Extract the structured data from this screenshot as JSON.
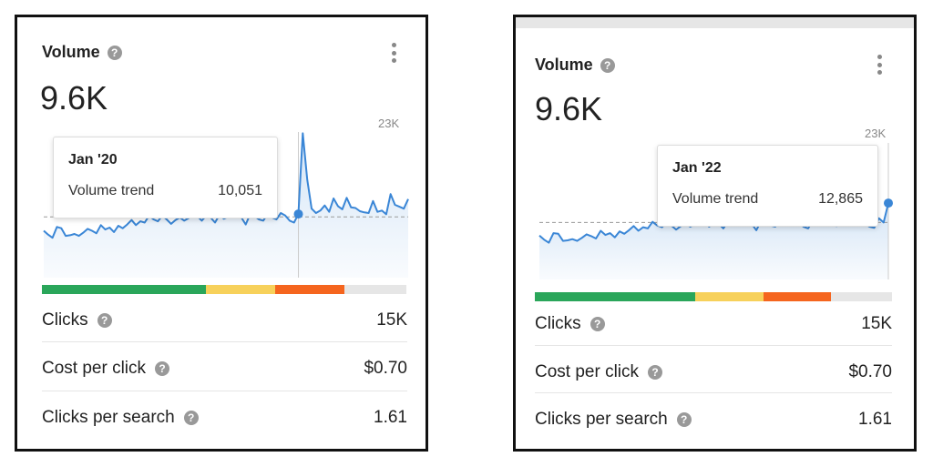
{
  "cards": [
    {
      "title": "Volume",
      "help_icon": "?",
      "volume": "9.6K",
      "max_label": "23K",
      "tooltip": {
        "date": "Jan '20",
        "label": "Volume trend",
        "value": "10,051"
      },
      "metrics": [
        {
          "label": "Clicks",
          "value": "15K"
        },
        {
          "label": "Cost per click",
          "value": "$0.70"
        },
        {
          "label": "Clicks per search",
          "value": "1.61"
        }
      ]
    },
    {
      "title": "Volume",
      "help_icon": "?",
      "volume": "9.6K",
      "max_label": "23K",
      "tooltip": {
        "date": "Jan '22",
        "label": "Volume trend",
        "value": "12,865"
      },
      "metrics": [
        {
          "label": "Clicks",
          "value": "15K"
        },
        {
          "label": "Cost per click",
          "value": "$0.70"
        },
        {
          "label": "Clicks per search",
          "value": "1.61"
        }
      ]
    }
  ],
  "difficulty_bar": {
    "segments": [
      {
        "color": "#2aa65a",
        "fraction": 0.45
      },
      {
        "color": "#f7d15b",
        "fraction": 0.19
      },
      {
        "color": "#f5651e",
        "fraction": 0.19
      },
      {
        "color": "#e6e6e6",
        "fraction": 0.17
      }
    ]
  },
  "chart_data": [
    {
      "type": "area",
      "ylim": [
        0,
        23000
      ],
      "average": 9600,
      "highlight_index": 58,
      "values": [
        7400,
        6800,
        6300,
        8000,
        7800,
        6600,
        6700,
        6900,
        6600,
        7100,
        7700,
        7400,
        7000,
        8300,
        7600,
        7900,
        7200,
        8200,
        7800,
        8400,
        9100,
        8300,
        8900,
        8700,
        9800,
        9200,
        8900,
        9800,
        9200,
        8500,
        9100,
        9500,
        9000,
        9400,
        9900,
        9700,
        9000,
        9800,
        9500,
        8700,
        9900,
        9300,
        9600,
        10300,
        9600,
        9500,
        8400,
        10000,
        9700,
        9200,
        9000,
        10100,
        9500,
        9200,
        10200,
        9800,
        9000,
        8700,
        10051,
        22800,
        15500,
        10900,
        10200,
        10600,
        11400,
        10400,
        12500,
        11300,
        10800,
        12600,
        11100,
        11000,
        10500,
        10300,
        10200,
        12100,
        10400,
        10600,
        10000,
        13200,
        11500,
        11200,
        10900,
        12400
      ]
    },
    {
      "type": "area",
      "ylim": [
        0,
        23000
      ],
      "average": 9600,
      "highlight_index": 74,
      "values": [
        7400,
        6700,
        6200,
        7800,
        7700,
        6500,
        6600,
        6800,
        6500,
        7000,
        7600,
        7300,
        6900,
        8200,
        7500,
        7800,
        7100,
        8100,
        7700,
        8300,
        9000,
        8200,
        8800,
        8600,
        9700,
        9100,
        8800,
        9700,
        9100,
        8400,
        9000,
        9400,
        8900,
        9300,
        9800,
        9600,
        8900,
        9700,
        9400,
        8600,
        9800,
        9200,
        9500,
        10200,
        9500,
        9400,
        8300,
        9900,
        9600,
        9100,
        8900,
        10000,
        9400,
        9100,
        10100,
        9700,
        8900,
        8600,
        10000,
        9600,
        9400,
        9800,
        9300,
        9000,
        10400,
        9500,
        9800,
        10100,
        9700,
        9400,
        8900,
        8700,
        10300,
        9600,
        12865
      ]
    }
  ]
}
